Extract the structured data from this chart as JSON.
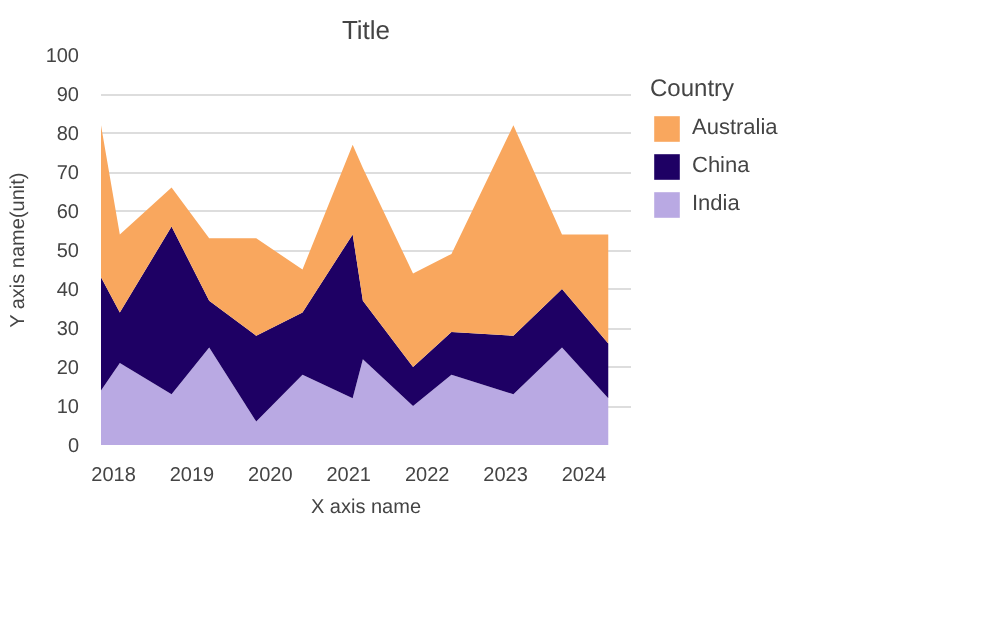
{
  "chart_data": {
    "type": "area",
    "stacked": true,
    "title": "Title",
    "xlabel": "X axis name",
    "ylabel": "Y axis name(unit)",
    "legend_title": "Country",
    "x": [
      2017.84,
      2018.08,
      2018.74,
      2019.22,
      2019.82,
      2020.41,
      2021.05,
      2021.18,
      2021.82,
      2022.31,
      2023.1,
      2023.72,
      2024.31
    ],
    "series": [
      {
        "name": "India",
        "color": "#b9a9e3",
        "values": [
          14,
          21,
          13,
          25,
          6,
          18,
          12,
          22,
          10,
          18,
          13,
          25,
          12
        ]
      },
      {
        "name": "China",
        "color": "#1e0064",
        "values": [
          29,
          13,
          43,
          12,
          22,
          16,
          42,
          15,
          10,
          11,
          15,
          15,
          14
        ]
      },
      {
        "name": "Australia",
        "color": "#f9a75e",
        "values": [
          39,
          20,
          10,
          16,
          25,
          11,
          23,
          34,
          24,
          20,
          54,
          14,
          28
        ]
      }
    ],
    "xlim": [
      2017.84,
      2024.6
    ],
    "xticks": [
      2018,
      2019,
      2020,
      2021,
      2022,
      2023,
      2024
    ],
    "ylim": [
      0,
      100
    ],
    "yticks": [
      0,
      10,
      20,
      30,
      40,
      50,
      60,
      70,
      80,
      90,
      100
    ],
    "grid": "y",
    "legend": "right"
  }
}
